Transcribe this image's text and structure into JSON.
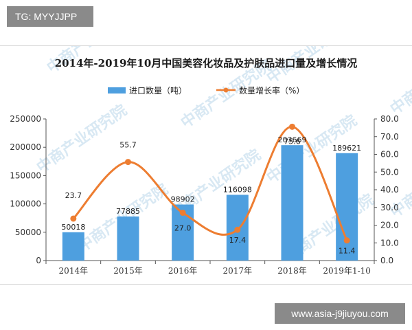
{
  "badge_top": "TG: MYYJJPP",
  "badge_bottom": "www.asia-j9jiuyou.com",
  "watermark_text": "中商产业研究院",
  "chart_data": {
    "type": "bar",
    "title": "2014年-2019年10月中国美容化妆品及护肤品进口量及增长情况",
    "categories": [
      "2014年",
      "2015年",
      "2016年",
      "2017年",
      "2018年",
      "2019年1-10"
    ],
    "series": [
      {
        "name": "进口数量（吨）",
        "type": "bar",
        "axis": "left",
        "color": "#4e9fdf",
        "values": [
          50018,
          77885,
          98902,
          116098,
          203669,
          189621
        ]
      },
      {
        "name": "数量增长率（%）",
        "type": "line",
        "axis": "right",
        "color": "#ed7d31",
        "values": [
          23.7,
          55.7,
          27.0,
          17.4,
          75.6,
          11.4
        ]
      }
    ],
    "bar_labels": [
      "50018",
      "77885",
      "98902",
      "116098",
      "203669",
      "189621"
    ],
    "line_labels": [
      "23.7",
      "55.7",
      "27.0",
      "17.4",
      "75.6",
      "11.4"
    ],
    "y_left": {
      "min": 0,
      "max": 250000,
      "ticks": [
        "0",
        "50000",
        "100000",
        "150000",
        "200000",
        "250000"
      ]
    },
    "y_right": {
      "min": 0,
      "max": 80,
      "ticks": [
        "0.0",
        "10.0",
        "20.0",
        "30.0",
        "40.0",
        "50.0",
        "60.0",
        "70.0",
        "80.0"
      ]
    },
    "legend_position": "top",
    "grid": false
  }
}
